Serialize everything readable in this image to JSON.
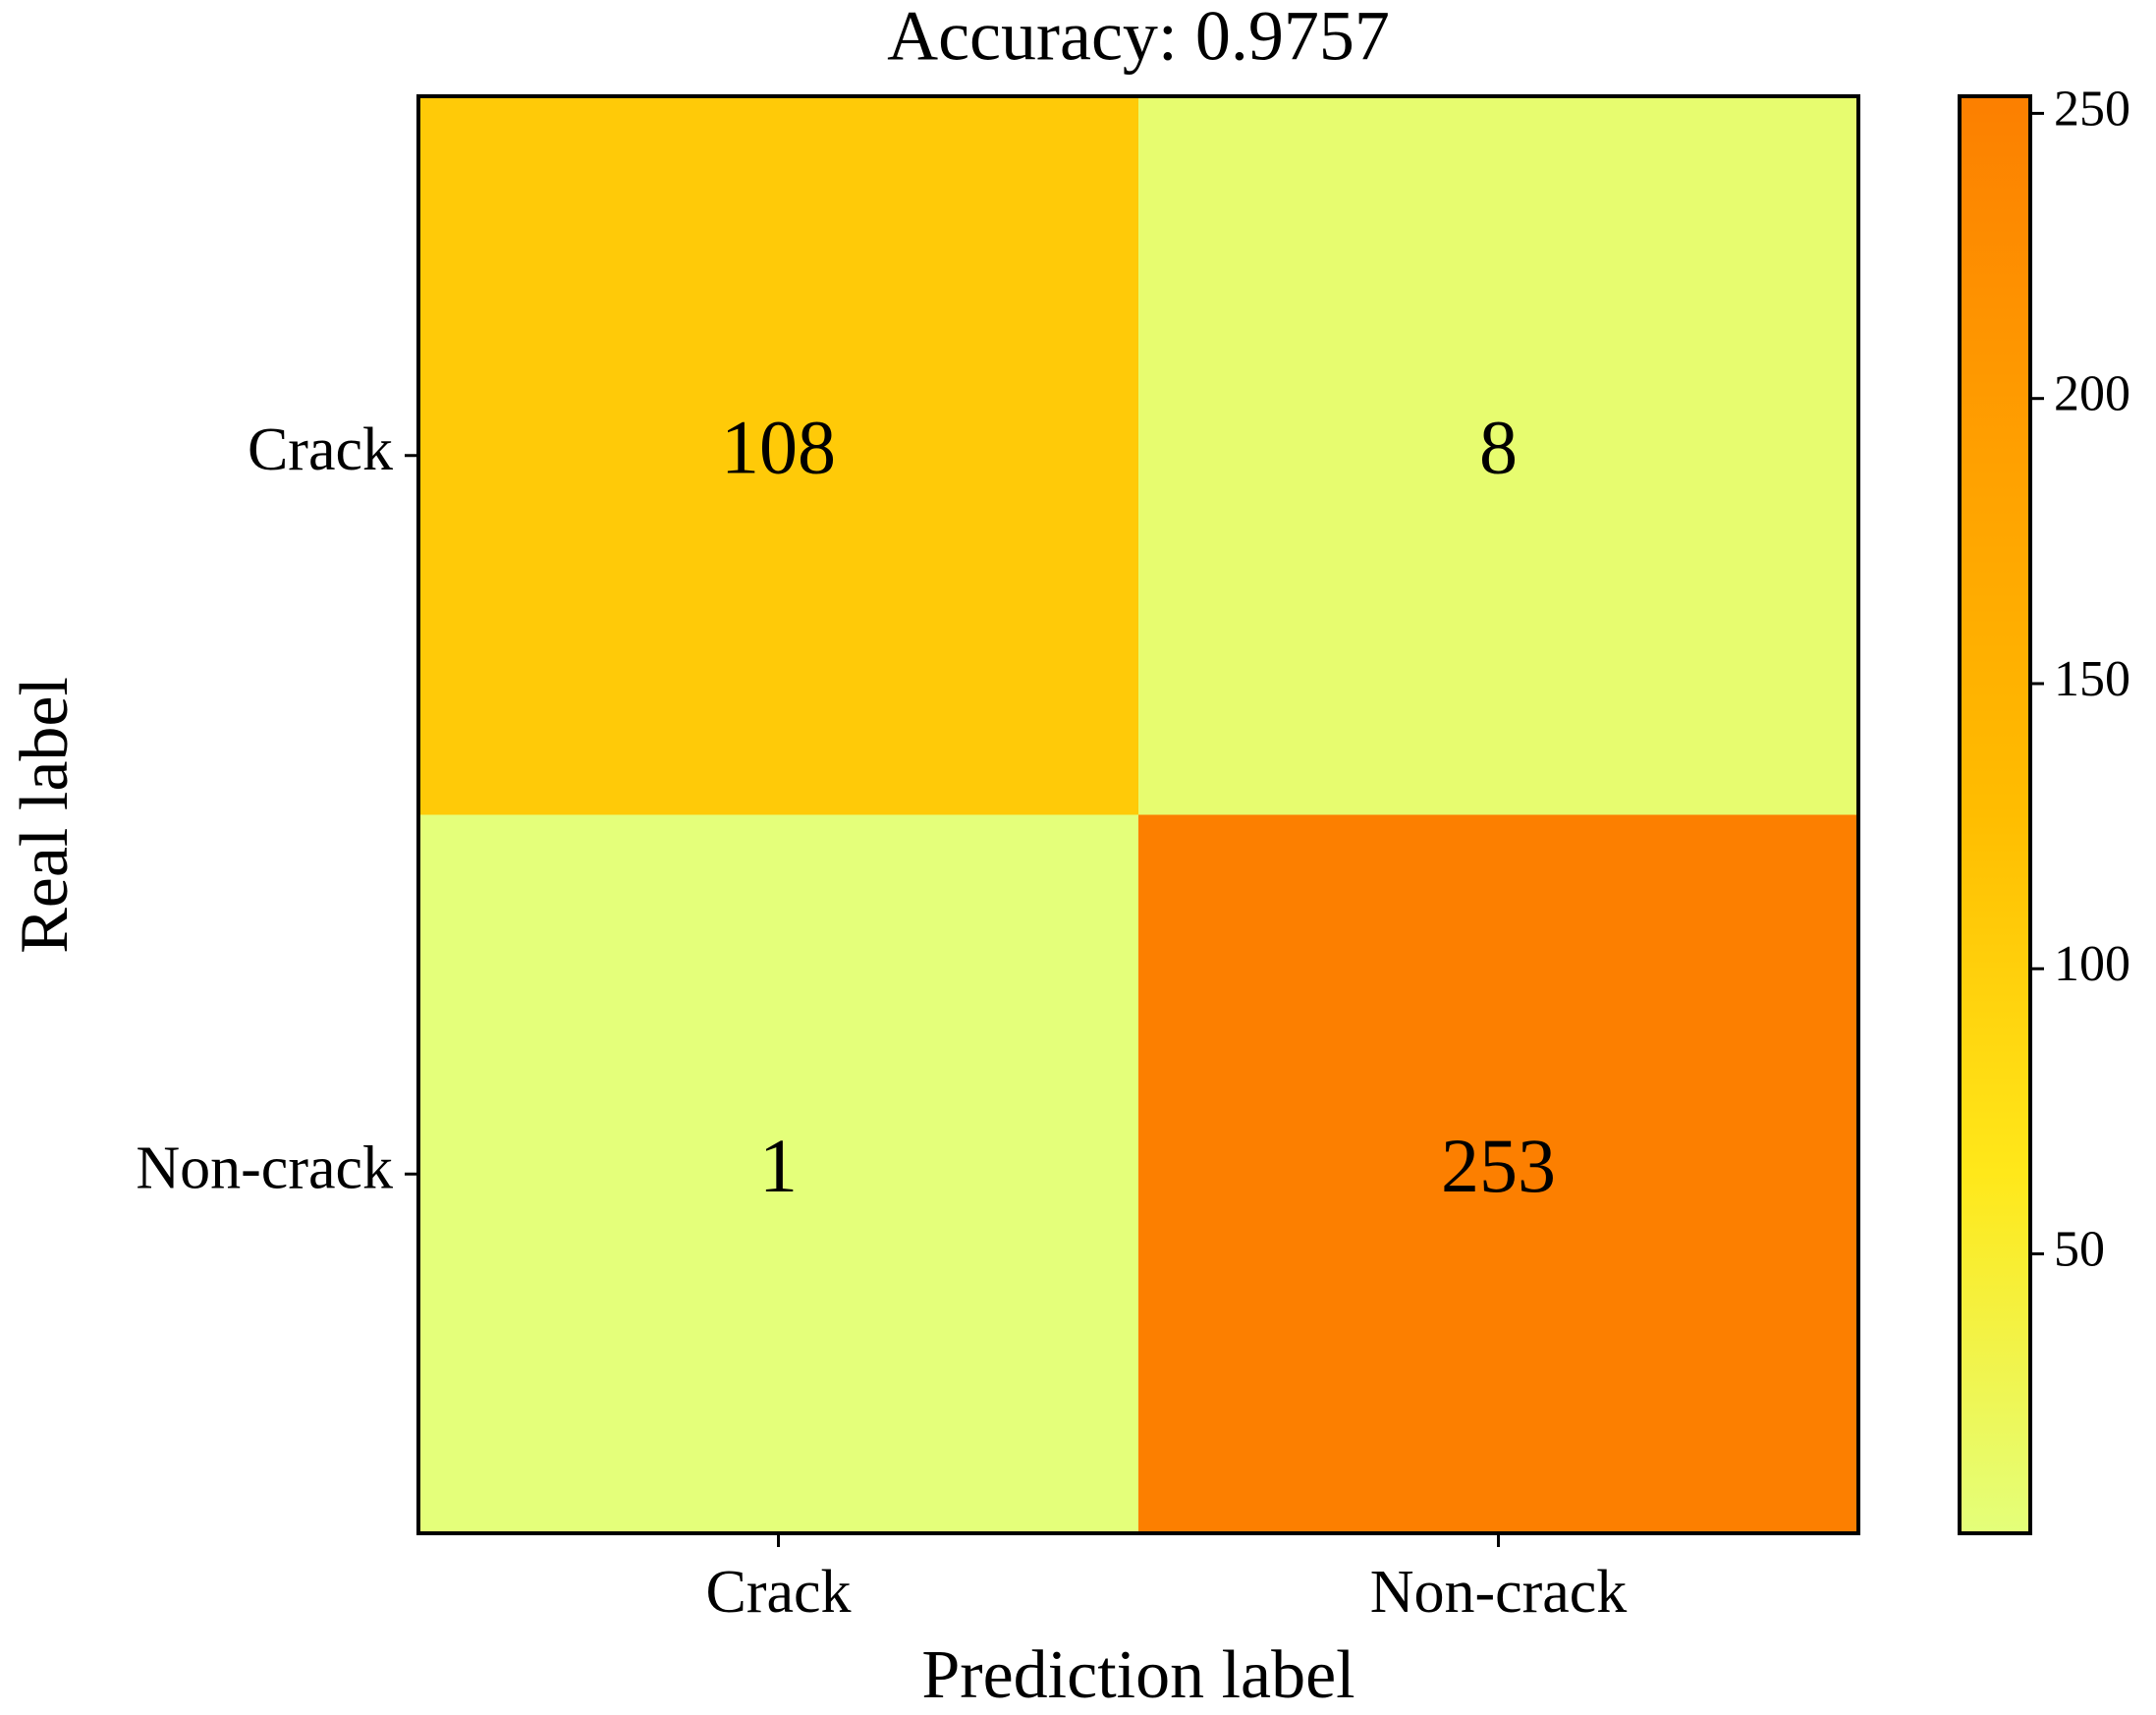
{
  "chart_data": {
    "type": "heatmap",
    "title": "Accuracy: 0.9757",
    "x_label": "Prediction label",
    "y_label": "Real label",
    "x_categories": [
      "Crack",
      "Non-crack"
    ],
    "y_categories": [
      "Crack",
      "Non-crack"
    ],
    "values": [
      [
        108,
        8
      ],
      [
        1,
        253
      ]
    ],
    "colors": [
      "#e4ff7a",
      "#ffe81a",
      "#ffbd00",
      "#ffa000",
      "#fc7f00"
    ],
    "clim": [
      1,
      253
    ],
    "colorbar_ticks": [
      50,
      100,
      150,
      200,
      250
    ]
  }
}
